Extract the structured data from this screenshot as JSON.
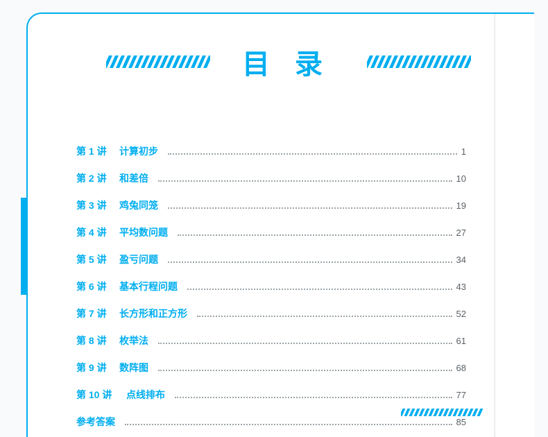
{
  "title": "目录",
  "accent_color": "#00aef0",
  "text_color": "#5a6166",
  "background_color": "#ffffff",
  "fontsize_title": 40,
  "fontsize_row": 14,
  "toc": [
    {
      "lesson": "第 1 讲",
      "topic": "计算初步",
      "page": "1"
    },
    {
      "lesson": "第 2 讲",
      "topic": "和差倍",
      "page": "10"
    },
    {
      "lesson": "第 3 讲",
      "topic": "鸡兔同笼",
      "page": "19"
    },
    {
      "lesson": "第 4 讲",
      "topic": "平均数问题",
      "page": "27"
    },
    {
      "lesson": "第 5 讲",
      "topic": "盈亏问题",
      "page": "34"
    },
    {
      "lesson": "第 6 讲",
      "topic": "基本行程问题",
      "page": "43"
    },
    {
      "lesson": "第 7 讲",
      "topic": "长方形和正方形",
      "page": "52"
    },
    {
      "lesson": "第 8 讲",
      "topic": "枚举法",
      "page": "61"
    },
    {
      "lesson": "第 9 讲",
      "topic": "数阵图",
      "page": "68"
    },
    {
      "lesson": "第 10 讲",
      "topic": "点线排布",
      "page": "77"
    },
    {
      "lesson": "",
      "topic": "参考答案",
      "page": "85"
    }
  ]
}
